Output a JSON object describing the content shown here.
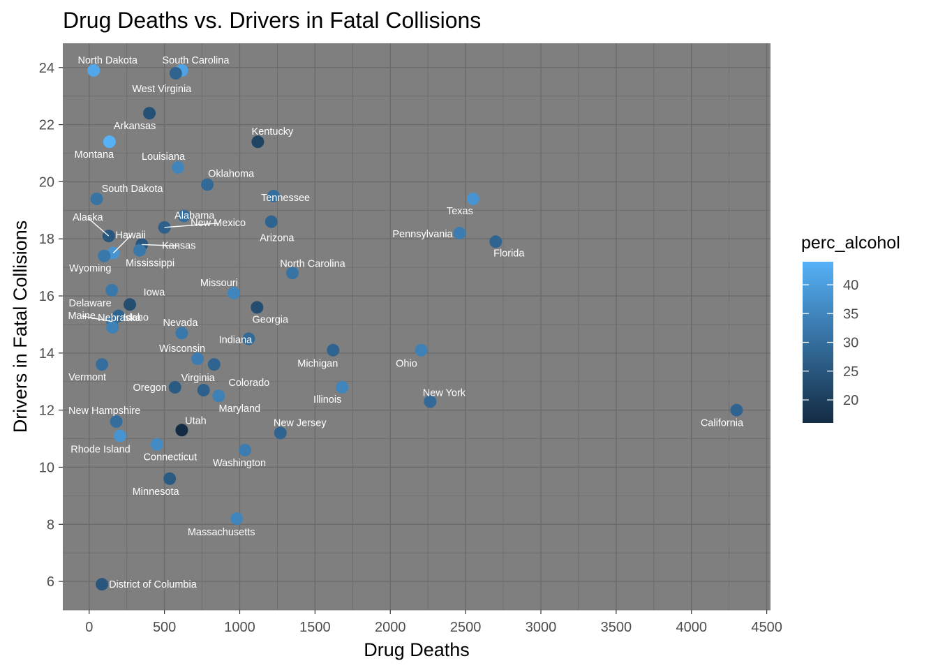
{
  "chart_data": {
    "type": "scatter",
    "title": "Drug Deaths vs. Drivers in Fatal Collisions",
    "xlabel": "Drug Deaths",
    "ylabel": "Drivers in Fatal Collisions",
    "xlim": [
      -175,
      4525
    ],
    "ylim": [
      5,
      24.85
    ],
    "x_ticks": [
      0,
      500,
      1000,
      1500,
      2000,
      2500,
      3000,
      3500,
      4000,
      4500
    ],
    "x_tick_labels": [
      "0",
      "500",
      "1000",
      "1500",
      "2000",
      "2500",
      "3000",
      "3500",
      "4000",
      "4500"
    ],
    "y_ticks": [
      6,
      8,
      10,
      12,
      14,
      16,
      18,
      20,
      22,
      24
    ],
    "y_tick_labels": [
      "6",
      "8",
      "10",
      "12",
      "14",
      "16",
      "18",
      "20",
      "22",
      "24"
    ],
    "grid": true,
    "legend": {
      "title": "perc_alcohol",
      "position": "right",
      "range": [
        16,
        44
      ],
      "breaks": [
        20,
        25,
        30,
        35,
        40
      ],
      "break_labels": [
        "20",
        "25",
        "30",
        "35",
        "40"
      ],
      "low_color": "#132B43",
      "high_color": "#56B1F7"
    },
    "colors": {
      "panel_background": "#7f7f7f",
      "grid_line": "#6b6b6b",
      "label_text": "#ffffff"
    },
    "points": [
      {
        "name": "Alabama",
        "x": 630,
        "y": 18.8,
        "perc_alcohol": 30
      },
      {
        "name": "Alaska",
        "x": 130,
        "y": 18.1,
        "perc_alcohol": 25
      },
      {
        "name": "Arizona",
        "x": 1210,
        "y": 18.6,
        "perc_alcohol": 28
      },
      {
        "name": "Arkansas",
        "x": 400,
        "y": 22.4,
        "perc_alcohol": 24
      },
      {
        "name": "California",
        "x": 4300,
        "y": 12.0,
        "perc_alcohol": 28
      },
      {
        "name": "Colorado",
        "x": 830,
        "y": 13.6,
        "perc_alcohol": 28
      },
      {
        "name": "Connecticut",
        "x": 450,
        "y": 10.8,
        "perc_alcohol": 36
      },
      {
        "name": "Delaware",
        "x": 150,
        "y": 16.2,
        "perc_alcohol": 32
      },
      {
        "name": "District of Columbia",
        "x": 85,
        "y": 5.9,
        "perc_alcohol": 25
      },
      {
        "name": "Florida",
        "x": 2700,
        "y": 17.9,
        "perc_alcohol": 28
      },
      {
        "name": "Georgia",
        "x": 1115,
        "y": 15.6,
        "perc_alcohol": 23
      },
      {
        "name": "Hawaii",
        "x": 160,
        "y": 17.5,
        "perc_alcohol": 38
      },
      {
        "name": "Idaho",
        "x": 195,
        "y": 15.3,
        "perc_alcohol": 28
      },
      {
        "name": "Illinois",
        "x": 1680,
        "y": 12.8,
        "perc_alcohol": 35
      },
      {
        "name": "Indiana",
        "x": 1060,
        "y": 14.5,
        "perc_alcohol": 29
      },
      {
        "name": "Iowa",
        "x": 270,
        "y": 15.7,
        "perc_alcohol": 23
      },
      {
        "name": "Kansas",
        "x": 350,
        "y": 17.8,
        "perc_alcohol": 25
      },
      {
        "name": "Kentucky",
        "x": 1120,
        "y": 21.4,
        "perc_alcohol": 21
      },
      {
        "name": "Louisiana",
        "x": 590,
        "y": 20.5,
        "perc_alcohol": 35
      },
      {
        "name": "Maine",
        "x": 155,
        "y": 15.1,
        "perc_alcohol": 30
      },
      {
        "name": "Maryland",
        "x": 860,
        "y": 12.5,
        "perc_alcohol": 34
      },
      {
        "name": "Massachusetts",
        "x": 980,
        "y": 8.2,
        "perc_alcohol": 35
      },
      {
        "name": "Michigan",
        "x": 1620,
        "y": 14.1,
        "perc_alcohol": 28
      },
      {
        "name": "Minnesota",
        "x": 535,
        "y": 9.6,
        "perc_alcohol": 26
      },
      {
        "name": "Mississippi",
        "x": 335,
        "y": 17.6,
        "perc_alcohol": 32
      },
      {
        "name": "Missouri",
        "x": 960,
        "y": 16.1,
        "perc_alcohol": 35
      },
      {
        "name": "Montana",
        "x": 135,
        "y": 21.4,
        "perc_alcohol": 44
      },
      {
        "name": "Nebraska",
        "x": 155,
        "y": 14.9,
        "perc_alcohol": 34
      },
      {
        "name": "Nevada",
        "x": 615,
        "y": 14.7,
        "perc_alcohol": 32
      },
      {
        "name": "New Hampshire",
        "x": 180,
        "y": 11.6,
        "perc_alcohol": 30
      },
      {
        "name": "New Jersey",
        "x": 1270,
        "y": 11.2,
        "perc_alcohol": 28
      },
      {
        "name": "New Mexico",
        "x": 500,
        "y": 18.4,
        "perc_alcohol": 27
      },
      {
        "name": "New York",
        "x": 2265,
        "y": 12.3,
        "perc_alcohol": 29
      },
      {
        "name": "North Carolina",
        "x": 1350,
        "y": 16.8,
        "perc_alcohol": 31
      },
      {
        "name": "North Dakota",
        "x": 30,
        "y": 23.9,
        "perc_alcohol": 42
      },
      {
        "name": "Ohio",
        "x": 2205,
        "y": 14.1,
        "perc_alcohol": 34
      },
      {
        "name": "Oklahoma",
        "x": 785,
        "y": 19.9,
        "perc_alcohol": 29
      },
      {
        "name": "Oregon",
        "x": 570,
        "y": 12.8,
        "perc_alcohol": 26
      },
      {
        "name": "Pennsylvania",
        "x": 2460,
        "y": 18.2,
        "perc_alcohol": 33
      },
      {
        "name": "Rhode Island",
        "x": 205,
        "y": 11.1,
        "perc_alcohol": 38
      },
      {
        "name": "South Carolina",
        "x": 615,
        "y": 23.9,
        "perc_alcohol": 41
      },
      {
        "name": "South Dakota",
        "x": 50,
        "y": 19.4,
        "perc_alcohol": 31
      },
      {
        "name": "Tennessee",
        "x": 1225,
        "y": 19.5,
        "perc_alcohol": 30
      },
      {
        "name": "Texas",
        "x": 2550,
        "y": 19.4,
        "perc_alcohol": 38
      },
      {
        "name": "Utah",
        "x": 615,
        "y": 11.3,
        "perc_alcohol": 16
      },
      {
        "name": "Vermont",
        "x": 85,
        "y": 13.6,
        "perc_alcohol": 30
      },
      {
        "name": "Virginia",
        "x": 760,
        "y": 12.7,
        "perc_alcohol": 27
      },
      {
        "name": "Washington",
        "x": 1035,
        "y": 10.6,
        "perc_alcohol": 33
      },
      {
        "name": "West Virginia",
        "x": 575,
        "y": 23.8,
        "perc_alcohol": 28
      },
      {
        "name": "Wisconsin",
        "x": 720,
        "y": 13.8,
        "perc_alcohol": 33
      },
      {
        "name": "Wyoming",
        "x": 100,
        "y": 17.4,
        "perc_alcohol": 32
      }
    ]
  }
}
